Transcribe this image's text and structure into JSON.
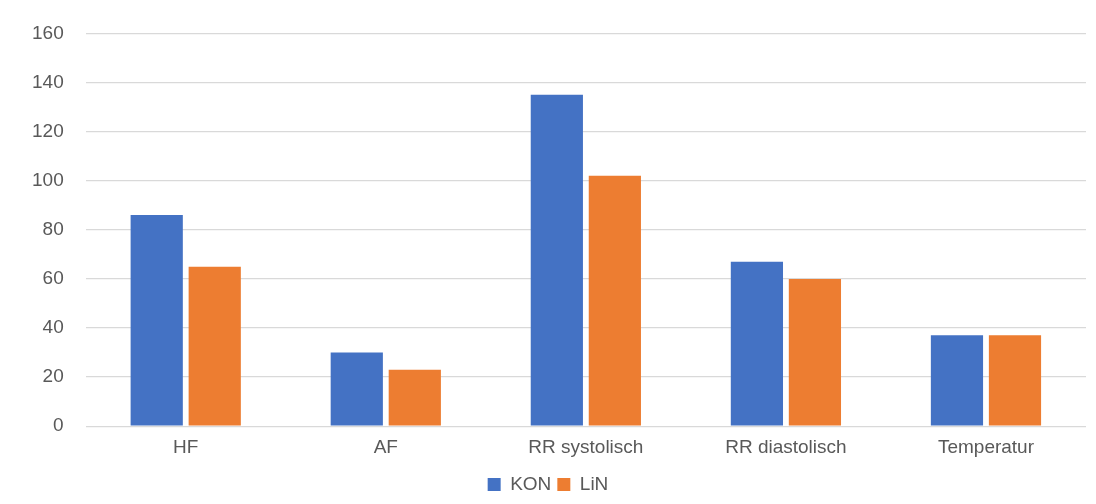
{
  "chart_data": {
    "type": "bar",
    "categories": [
      "HF",
      "AF",
      "RR systolisch",
      "RR diastolisch",
      "Temperatur"
    ],
    "series": [
      {
        "name": "KON",
        "color": "#4472c4",
        "values": [
          86,
          30,
          135,
          67,
          37
        ]
      },
      {
        "name": "LiN",
        "color": "#ed7d31",
        "values": [
          65,
          23,
          102,
          60,
          37
        ]
      }
    ],
    "ylim": [
      0,
      160
    ],
    "yticks": [
      0,
      20,
      40,
      60,
      80,
      100,
      120,
      140,
      160
    ],
    "grid": "y",
    "legend": "bottom"
  }
}
